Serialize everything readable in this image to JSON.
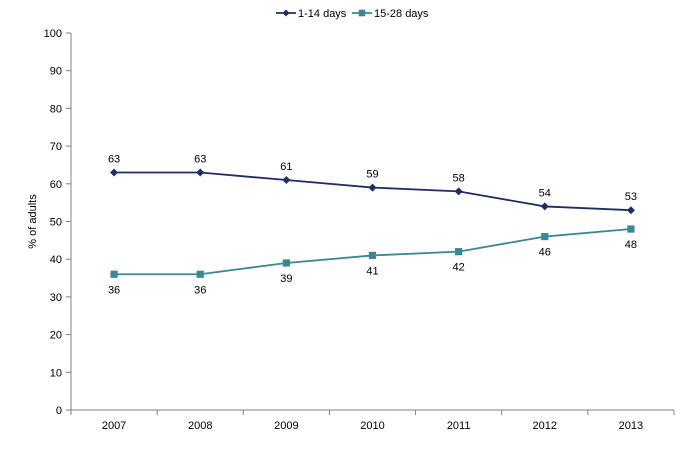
{
  "chart_data": {
    "type": "line",
    "title": "",
    "xlabel": "",
    "ylabel": "% of adults",
    "categories": [
      "2007",
      "2008",
      "2009",
      "2010",
      "2011",
      "2012",
      "2013"
    ],
    "ylim": [
      0,
      100
    ],
    "yticks": [
      0,
      10,
      20,
      30,
      40,
      50,
      60,
      70,
      80,
      90,
      100
    ],
    "grid": false,
    "legend_position": "top",
    "series": [
      {
        "name": "1-14 days",
        "values": [
          63,
          63,
          61,
          59,
          58,
          54,
          53
        ],
        "color": "#1F2F63",
        "marker": "diamond",
        "label_position": "above"
      },
      {
        "name": "15-28 days",
        "values": [
          36,
          36,
          39,
          41,
          42,
          46,
          48
        ],
        "color": "#3A8893",
        "marker": "square",
        "label_position": "below"
      }
    ]
  }
}
